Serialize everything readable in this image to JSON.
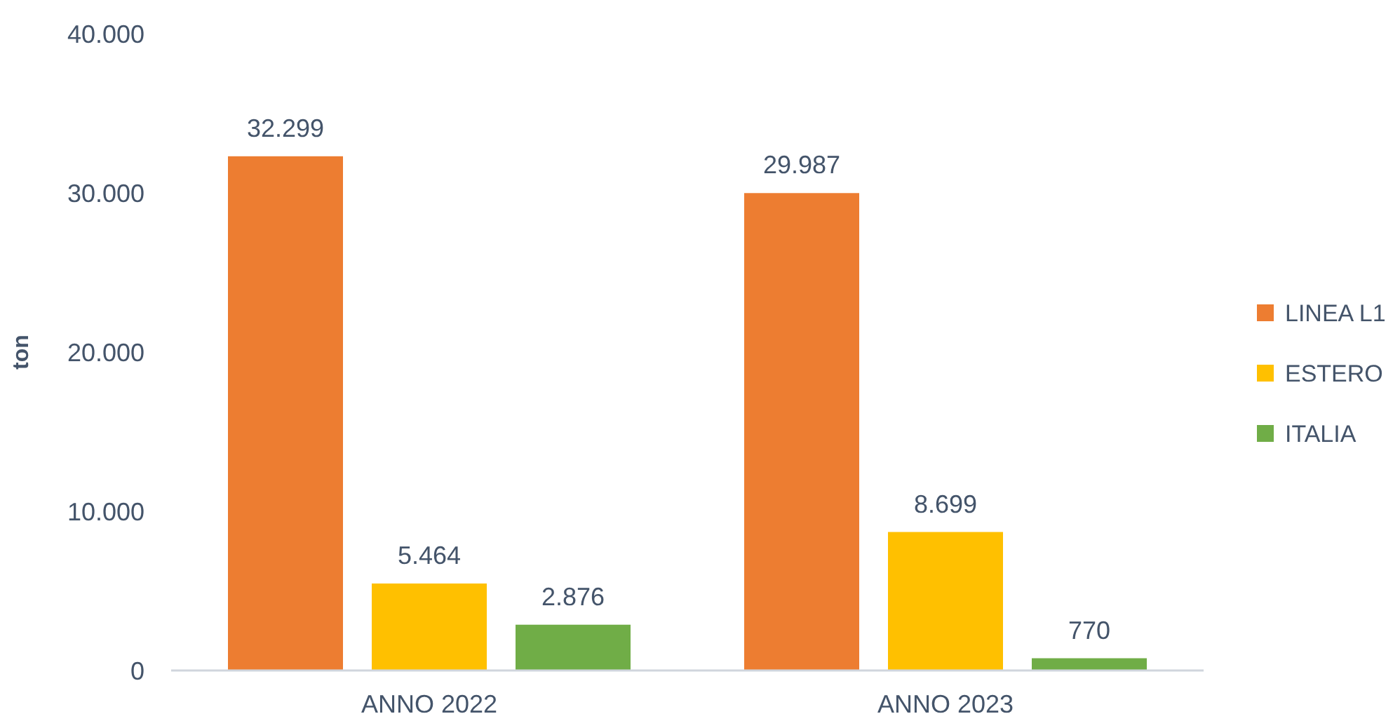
{
  "chart_data": {
    "type": "bar",
    "ylabel": "ton",
    "categories": [
      "ANNO 2022",
      "ANNO 2023"
    ],
    "series": [
      {
        "name": "LINEA L1",
        "color": "#ed7d31",
        "values": [
          32299,
          29987
        ],
        "value_labels": [
          "32.299",
          "29.987"
        ]
      },
      {
        "name": "ESTERO",
        "color": "#ffc000",
        "values": [
          5464,
          8699
        ],
        "value_labels": [
          "5.464",
          "8.699"
        ]
      },
      {
        "name": "ITALIA",
        "color": "#70ad47",
        "values": [
          2876,
          770
        ],
        "value_labels": [
          "2.876",
          "770"
        ]
      }
    ],
    "ylim": [
      0,
      40000
    ],
    "yticks": [
      {
        "value": 0,
        "label": "0"
      },
      {
        "value": 10000,
        "label": "10.000"
      },
      {
        "value": 20000,
        "label": "20.000"
      },
      {
        "value": 30000,
        "label": "30.000"
      },
      {
        "value": 40000,
        "label": "40.000"
      }
    ],
    "legend": "right",
    "grid": false
  }
}
